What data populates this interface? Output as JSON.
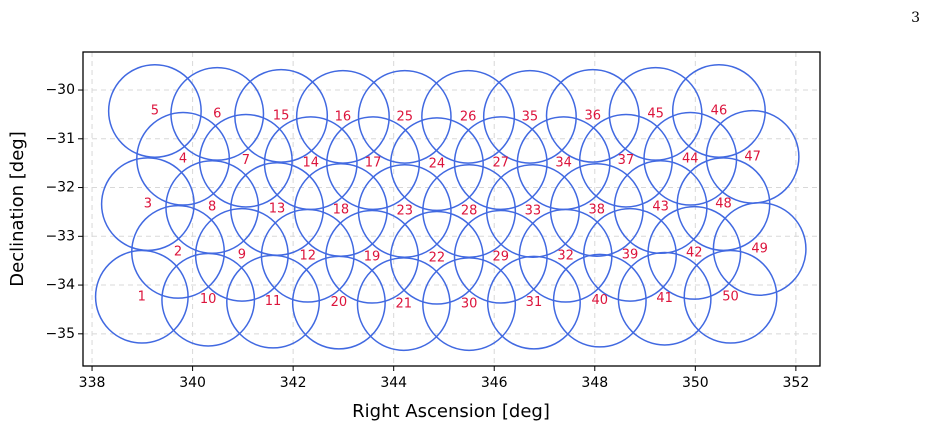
{
  "page_number": "3",
  "chart_data": {
    "type": "scatter",
    "x_label": "Right Ascension [deg]",
    "y_label": "Declination [deg]",
    "xlim": [
      337.82,
      352.48
    ],
    "ylim": [
      -35.66,
      -29.22
    ],
    "xticks": [
      338,
      340,
      342,
      344,
      346,
      348,
      350,
      352
    ],
    "yticks": [
      {
        "value": -35,
        "label": "−35"
      },
      {
        "value": -34,
        "label": "−34"
      },
      {
        "value": -33,
        "label": "−33"
      },
      {
        "value": -32,
        "label": "−32"
      },
      {
        "value": -31,
        "label": "−31"
      },
      {
        "value": -30,
        "label": "−30"
      }
    ],
    "grid": true,
    "radius": 0.92,
    "label_color": "#dc143c",
    "x": [
      338.99,
      339.71,
      339.11,
      339.81,
      339.25,
      340.49,
      341.06,
      340.39,
      340.98,
      340.31,
      341.6,
      342.29,
      341.68,
      342.35,
      341.76,
      342.99,
      343.59,
      342.95,
      343.57,
      342.91,
      344.2,
      344.86,
      344.22,
      344.86,
      344.22,
      345.48,
      346.13,
      345.5,
      346.13,
      345.5,
      346.79,
      347.42,
      346.77,
      347.38,
      346.71,
      347.96,
      348.62,
      348.04,
      348.7,
      348.1,
      349.39,
      349.98,
      349.31,
      349.9,
      349.21,
      350.47,
      351.14,
      350.56,
      351.28,
      350.7
    ],
    "series": [
      {
        "color": "#4169e1",
        "values": [
          -34.24,
          -33.32,
          -32.34,
          -31.41,
          -30.43,
          -30.49,
          -31.45,
          -32.4,
          -33.38,
          -34.3,
          -34.34,
          -33.4,
          -32.44,
          -31.5,
          -30.53,
          -30.55,
          -31.5,
          -32.46,
          -33.42,
          -34.36,
          -34.39,
          -33.44,
          -32.48,
          -31.52,
          -30.55,
          -30.55,
          -31.5,
          -32.48,
          -33.42,
          -34.39,
          -34.36,
          -33.4,
          -32.48,
          -31.5,
          -30.55,
          -30.53,
          -31.45,
          -32.46,
          -33.38,
          -34.32,
          -34.28,
          -33.34,
          -32.4,
          -31.41,
          -30.49,
          -30.43,
          -31.37,
          -32.34,
          -33.26,
          -34.24
        ]
      }
    ],
    "point_labels": [
      "1",
      "2",
      "3",
      "4",
      "5",
      "6",
      "7",
      "8",
      "9",
      "10",
      "11",
      "12",
      "13",
      "14",
      "15",
      "16",
      "17",
      "18",
      "19",
      "20",
      "21",
      "22",
      "23",
      "24",
      "25",
      "26",
      "27",
      "28",
      "29",
      "30",
      "31",
      "32",
      "33",
      "34",
      "35",
      "36",
      "37",
      "38",
      "39",
      "40",
      "41",
      "42",
      "43",
      "44",
      "45",
      "46",
      "47",
      "48",
      "49",
      "50"
    ]
  }
}
